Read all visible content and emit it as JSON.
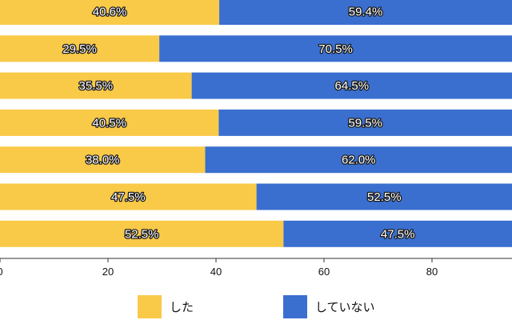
{
  "chart_data": {
    "type": "bar",
    "orientation": "horizontal",
    "stacked": true,
    "title": "",
    "xlabel": "",
    "ylabel": "",
    "xlim": [
      0,
      100
    ],
    "x_ticks": [
      0,
      20,
      40,
      60,
      80
    ],
    "categories": [
      "",
      "",
      "",
      "",
      "",
      "",
      ""
    ],
    "series": [
      {
        "name": "した",
        "color": "#f9c948",
        "values": [
          40.6,
          29.5,
          35.5,
          40.5,
          38.0,
          47.5,
          52.5
        ],
        "labels": [
          "40.6%",
          "29.5%",
          "35.5%",
          "40.5%",
          "38.0%",
          "47.5%",
          "52.5%"
        ]
      },
      {
        "name": "していない",
        "color": "#3a6fd0",
        "values": [
          59.4,
          70.5,
          64.5,
          59.5,
          62.0,
          52.5,
          47.5
        ],
        "labels": [
          "59.4%",
          "70.5%",
          "64.5%",
          "59.5%",
          "62.0%",
          "52.5%",
          "47.5%"
        ]
      }
    ],
    "legend": {
      "placement": "bottom",
      "entries": [
        "した",
        "していない"
      ]
    }
  }
}
